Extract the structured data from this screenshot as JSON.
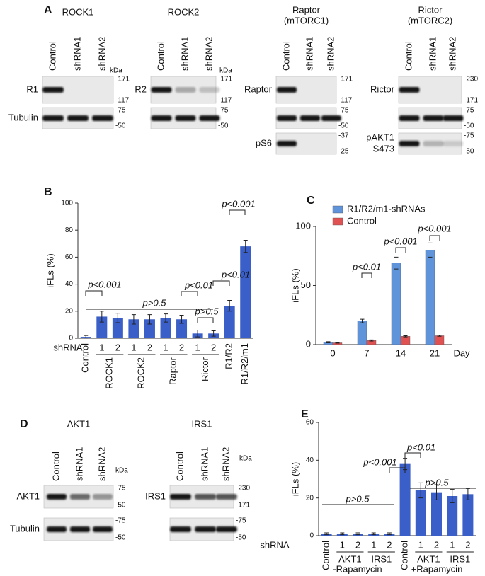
{
  "panel_a": {
    "label": "A",
    "groups": [
      {
        "title": [
          "ROCK1"
        ],
        "kda": "kDa",
        "lanes": [
          "Control",
          "shRNA1",
          "shRNA2"
        ],
        "rows": [
          {
            "label": [
              "R1"
            ],
            "markers": [
              "-171",
              "-117"
            ]
          },
          {
            "label": [
              "Tubulin"
            ],
            "markers": [
              "-75",
              "-50"
            ]
          }
        ]
      },
      {
        "title": [
          "ROCK2"
        ],
        "kda": "kDa",
        "lanes": [
          "Control",
          "shRNA1",
          "shRNA2"
        ],
        "rows": [
          {
            "label": [
              "R2"
            ],
            "markers": [
              "-171",
              "-117"
            ]
          },
          {
            "markers": [
              "-75",
              "-50"
            ]
          }
        ]
      },
      {
        "title": [
          "Raptor",
          "(mTORC1)"
        ],
        "lanes": [
          "Control",
          "shRNA1",
          "shRNA2"
        ],
        "rows": [
          {
            "label": [
              "Raptor"
            ],
            "markers": [
              "-171",
              "-117"
            ]
          },
          {
            "markers": [
              "-75",
              "-50"
            ]
          },
          {
            "label": [
              "pS6"
            ],
            "markers": [
              "-37",
              "-25"
            ]
          }
        ]
      },
      {
        "title": [
          "Rictor",
          "(mTORC2)"
        ],
        "lanes": [
          "Control",
          "shRNA1",
          "shRNA2"
        ],
        "rows": [
          {
            "label": [
              "Rictor"
            ],
            "markers": [
              "-230",
              "-171"
            ]
          },
          {
            "markers": [
              "-75",
              "-50"
            ]
          },
          {
            "label": [
              "pAKT1",
              "S473"
            ],
            "markers": [
              "-75",
              "-50"
            ]
          }
        ]
      }
    ]
  },
  "panel_d": {
    "label": "D",
    "groups": [
      {
        "title": [
          "AKT1"
        ],
        "kda": "kDa",
        "lanes": [
          "Control",
          "shRNA1",
          "shRNA2"
        ],
        "rows": [
          {
            "label": [
              "AKT1"
            ],
            "markers": [
              "-75",
              "-50"
            ]
          },
          {
            "label": [
              "Tubulin"
            ],
            "markers": [
              "-75",
              "-50"
            ]
          }
        ]
      },
      {
        "title": [
          "IRS1"
        ],
        "kda": "kDa",
        "lanes": [
          "Control",
          "shRNA1",
          "shRNA2"
        ],
        "rows": [
          {
            "label": [
              "IRS1"
            ],
            "markers": [
              "-230",
              "-171"
            ]
          },
          {
            "markers": [
              "-75",
              "-50"
            ]
          }
        ]
      }
    ]
  },
  "chart_data": [
    {
      "type": "bar",
      "label": "B",
      "ylabel": "iFLs (%)",
      "x_title": "shRNA",
      "categories": [
        "Control",
        "1",
        "2",
        "1",
        "2",
        "1",
        "2",
        "1",
        "2",
        "R1/R2",
        "R1/R2/m1"
      ],
      "group_labels": [
        "ROCK1",
        "ROCK2",
        "Raptor",
        "Rictor"
      ],
      "values": [
        1,
        16,
        15,
        14,
        14,
        15,
        14,
        3.5,
        3.5,
        24,
        68
      ],
      "errors": [
        1,
        4,
        3.5,
        3.5,
        3.5,
        3,
        3,
        2.5,
        2,
        4,
        4.5
      ],
      "color": "#3b5fc8",
      "ylim": [
        0,
        100
      ],
      "yticks": [
        0,
        20,
        40,
        60,
        80,
        100
      ],
      "annotations": [
        "p<0.001",
        "p>0.5",
        "p<0.01",
        "p>0.5",
        "p<0.01",
        "p<0.001"
      ]
    },
    {
      "type": "bar",
      "label": "C",
      "ylabel": "iFLs (%)",
      "xlabel": "Day",
      "categories": [
        "0",
        "7",
        "14",
        "21"
      ],
      "series": [
        {
          "name": "R1/R2/m1-shRNAs",
          "color": "#5f93da",
          "values": [
            2,
            20,
            69,
            80
          ],
          "errors": [
            0.5,
            1.5,
            5,
            6
          ]
        },
        {
          "name": "Control",
          "color": "#e05252",
          "values": [
            1.5,
            3.5,
            7,
            7.5
          ],
          "errors": [
            0.3,
            0.5,
            0.5,
            0.5
          ]
        }
      ],
      "ylim": [
        0,
        100
      ],
      "yticks": [
        0,
        50,
        100
      ],
      "legend": "upper left",
      "annotations": [
        "p<0.01",
        "p<0.001",
        "p<0.001"
      ]
    },
    {
      "type": "bar",
      "label": "E",
      "ylabel": "iFLs (%)",
      "x_title": "shRNA",
      "categories": [
        "Control",
        "1",
        "2",
        "1",
        "2",
        "Control",
        "1",
        "2",
        "1",
        "2"
      ],
      "group_labels": [
        "AKT1",
        "IRS1",
        "AKT1",
        "IRS1"
      ],
      "conditions": [
        "-Rapamycin",
        "+Rapamycin"
      ],
      "values": [
        1,
        1,
        1,
        1,
        1,
        38,
        24,
        23,
        21,
        22
      ],
      "errors": [
        0.5,
        0.5,
        0.5,
        0.5,
        0.5,
        3,
        4,
        4,
        3.5,
        3
      ],
      "color": "#3b5fc8",
      "ylim": [
        0,
        60
      ],
      "yticks": [
        0,
        20,
        40,
        60
      ],
      "annotations": [
        "p>0.5",
        "p<0.001",
        "p<0.01",
        "p>0.5"
      ]
    }
  ]
}
